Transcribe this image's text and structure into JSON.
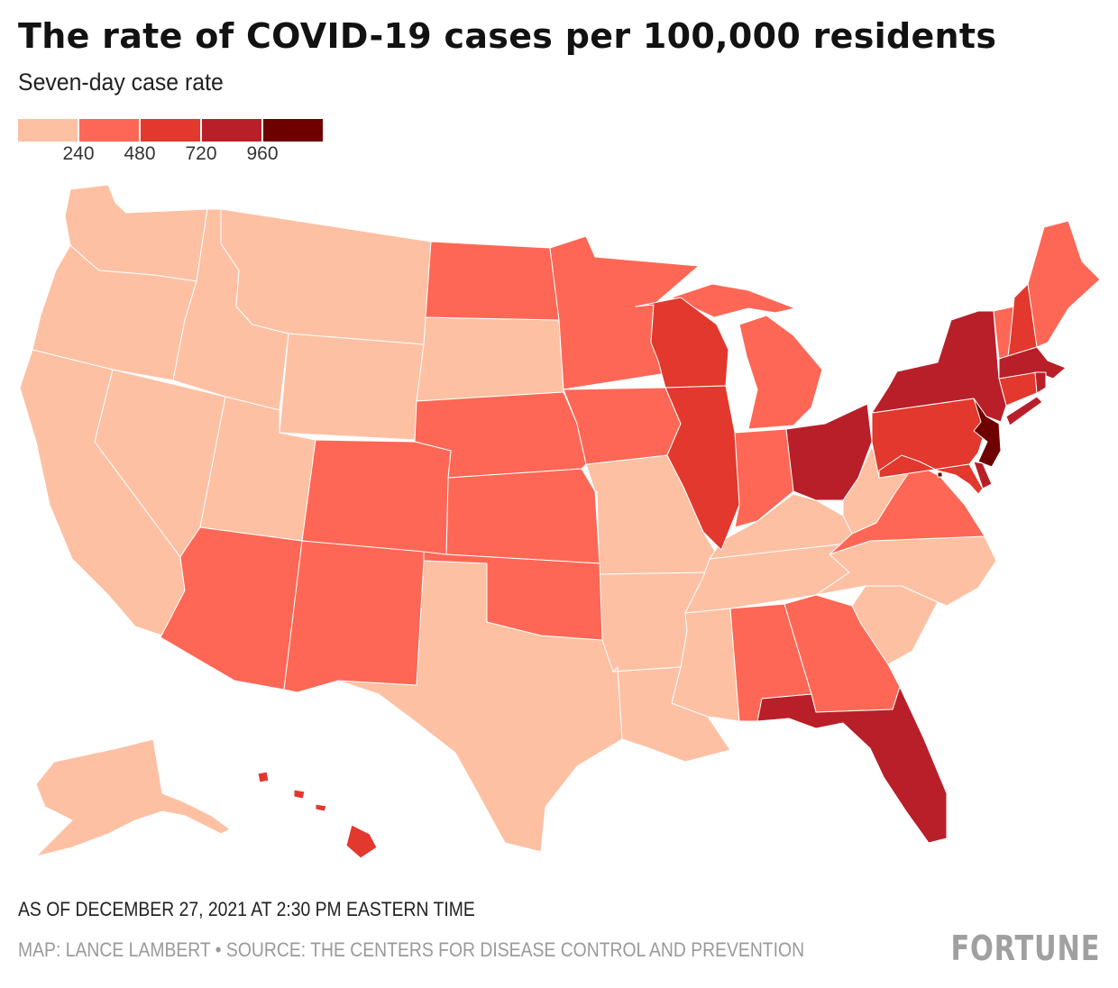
{
  "title": "The rate of COVID-19 cases per 100,000 residents",
  "subtitle": "Seven-day case rate",
  "legend": {
    "labels": [
      "240",
      "480",
      "720",
      "960"
    ],
    "colors": [
      "#fdc0a3",
      "#fe6755",
      "#e2382d",
      "#b91f29",
      "#6f0000"
    ]
  },
  "states": {
    "WA": 0,
    "OR": 0,
    "CA": 0,
    "ID": 0,
    "NV": 0,
    "MT": 0,
    "WY": 0,
    "UT": 0,
    "SD": 0,
    "TX": 0,
    "MO": 0,
    "AR": 0,
    "LA": 0,
    "MS": 0,
    "TN": 0,
    "KY": 0,
    "WV": 0,
    "NC": 0,
    "SC": 0,
    "AK": 0,
    "ND": 1,
    "MN": 1,
    "NE": 1,
    "KS": 1,
    "CO": 1,
    "AZ": 1,
    "NM": 1,
    "OK": 1,
    "IA": 1,
    "IN": 1,
    "MI": 1,
    "AL": 1,
    "GA": 1,
    "VA": 1,
    "ME": 1,
    "VT": 1,
    "WI": 2,
    "IL": 2,
    "PA": 2,
    "NH": 2,
    "CT": 2,
    "MD": 2,
    "HI": 2,
    "NY": 3,
    "OH": 3,
    "MA": 3,
    "FL": 3,
    "RI": 3,
    "DE": 3,
    "NJ": 4,
    "DC": 4
  },
  "footer": {
    "as_of": "AS OF DECEMBER 27, 2021 AT 2:30 PM EASTERN TIME",
    "credit": "MAP: LANCE LAMBERT • SOURCE: THE CENTERS FOR DISEASE CONTROL AND PREVENTION",
    "logo": "FORTUNE"
  }
}
